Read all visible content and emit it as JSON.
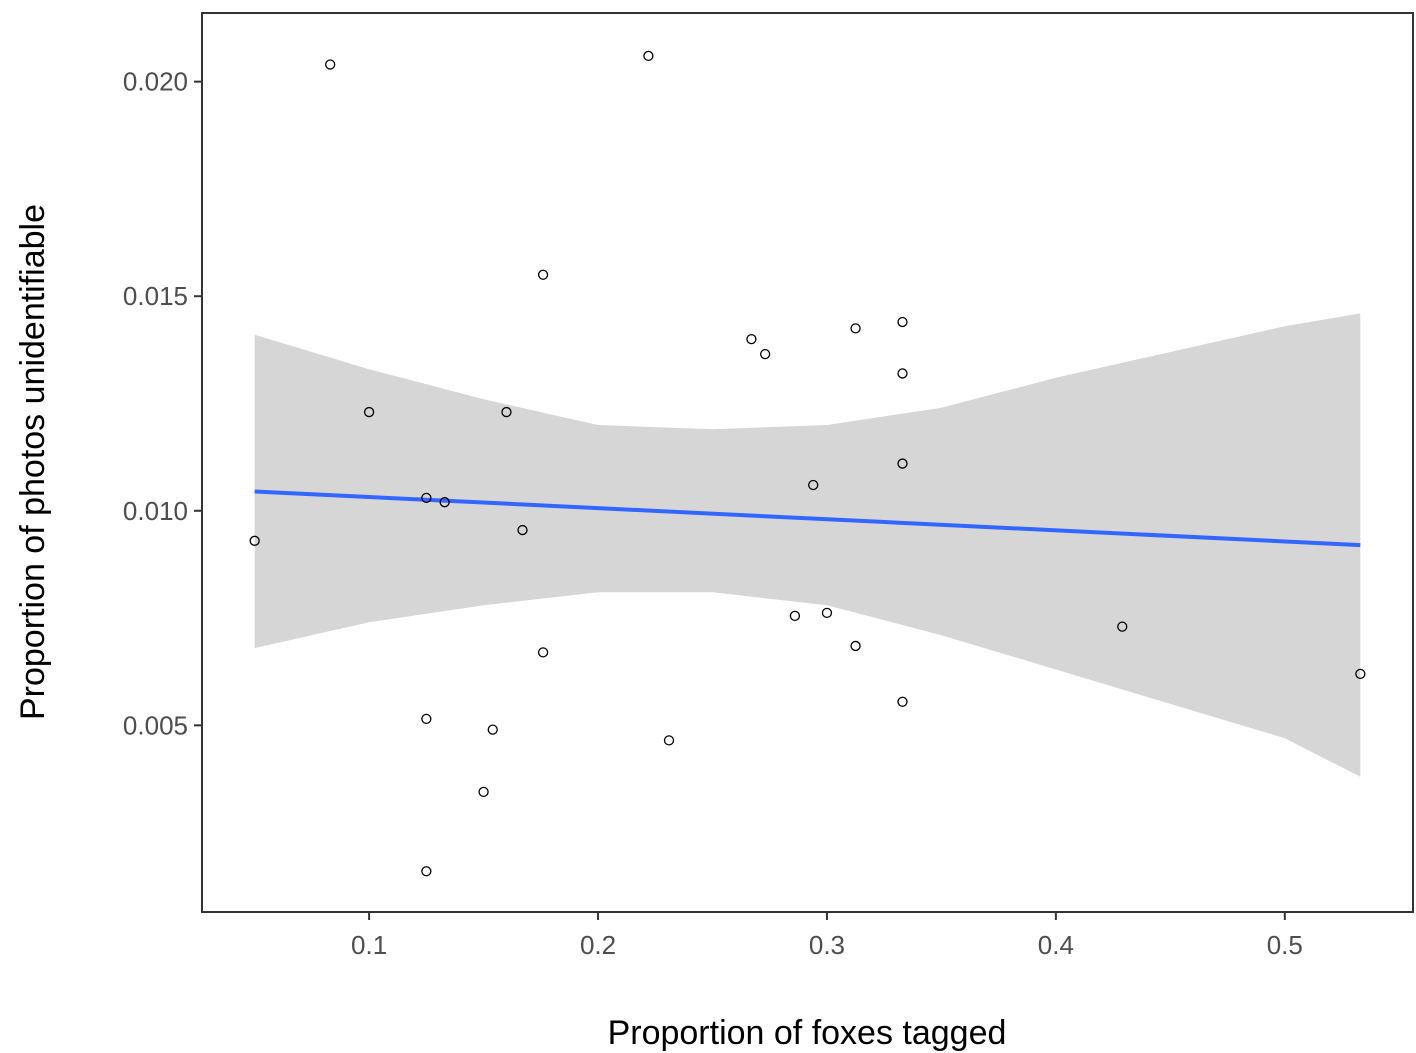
{
  "chart_data": {
    "type": "scatter",
    "title": "",
    "xlabel": "Proportion of foxes tagged",
    "ylabel": "Proportion of photos unidentifiable",
    "xlim": [
      0.027,
      0.556
    ],
    "ylim": [
      0.00065,
      0.0216
    ],
    "x_ticks": [
      0.1,
      0.2,
      0.3,
      0.4,
      0.5
    ],
    "x_tick_labels": [
      "0.1",
      "0.2",
      "0.3",
      "0.4",
      "0.5"
    ],
    "y_ticks": [
      0.005,
      0.01,
      0.015,
      0.02
    ],
    "y_tick_labels": [
      "0.005",
      "0.010",
      "0.015",
      "0.020"
    ],
    "grid": false,
    "legend": "none",
    "points": [
      {
        "x": 0.05,
        "y": 0.0093
      },
      {
        "x": 0.083,
        "y": 0.0204
      },
      {
        "x": 0.1,
        "y": 0.0123
      },
      {
        "x": 0.125,
        "y": 0.0103
      },
      {
        "x": 0.133,
        "y": 0.0102
      },
      {
        "x": 0.125,
        "y": 0.00515
      },
      {
        "x": 0.125,
        "y": 0.0016
      },
      {
        "x": 0.15,
        "y": 0.00345
      },
      {
        "x": 0.154,
        "y": 0.0049
      },
      {
        "x": 0.16,
        "y": 0.0123
      },
      {
        "x": 0.167,
        "y": 0.00955
      },
      {
        "x": 0.176,
        "y": 0.0155
      },
      {
        "x": 0.176,
        "y": 0.0067
      },
      {
        "x": 0.222,
        "y": 0.0206
      },
      {
        "x": 0.231,
        "y": 0.00465
      },
      {
        "x": 0.267,
        "y": 0.014
      },
      {
        "x": 0.273,
        "y": 0.01365
      },
      {
        "x": 0.286,
        "y": 0.00755
      },
      {
        "x": 0.294,
        "y": 0.0106
      },
      {
        "x": 0.3,
        "y": 0.00762
      },
      {
        "x": 0.3125,
        "y": 0.01425
      },
      {
        "x": 0.3125,
        "y": 0.00685
      },
      {
        "x": 0.333,
        "y": 0.0144
      },
      {
        "x": 0.333,
        "y": 0.0132
      },
      {
        "x": 0.333,
        "y": 0.0111
      },
      {
        "x": 0.333,
        "y": 0.00555
      },
      {
        "x": 0.429,
        "y": 0.0073
      },
      {
        "x": 0.533,
        "y": 0.0062
      }
    ],
    "fit_line": {
      "x": [
        0.05,
        0.533
      ],
      "y": [
        0.01045,
        0.0092
      ]
    },
    "confidence_band": {
      "x": [
        0.05,
        0.1,
        0.15,
        0.2,
        0.25,
        0.3,
        0.35,
        0.4,
        0.45,
        0.5,
        0.533
      ],
      "upper": [
        0.0141,
        0.0133,
        0.0126,
        0.012,
        0.0119,
        0.012,
        0.0124,
        0.0131,
        0.0137,
        0.0143,
        0.0146
      ],
      "lower": [
        0.0068,
        0.0074,
        0.0078,
        0.0081,
        0.0081,
        0.0078,
        0.0071,
        0.0063,
        0.0055,
        0.0047,
        0.0038
      ]
    },
    "colors": {
      "fit_line": "#3366ff",
      "band": "#d6d6d6",
      "point_stroke": "#000000",
      "axis": "#333333",
      "tick_label": "#4d4d4d"
    }
  }
}
